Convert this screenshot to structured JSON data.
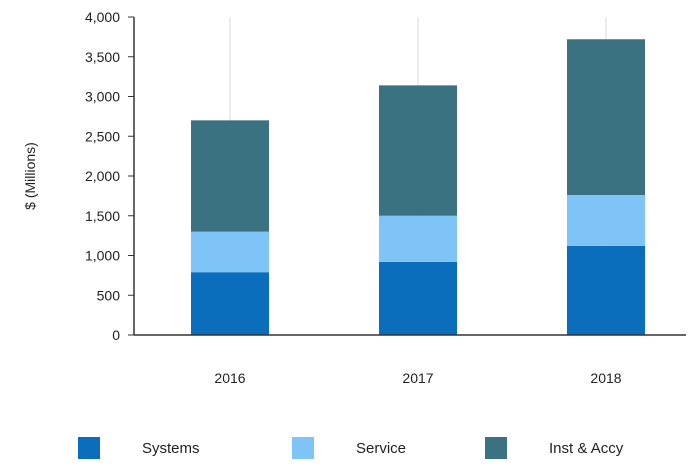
{
  "chart_data": {
    "type": "bar",
    "stacked": true,
    "categories": [
      "2016",
      "2017",
      "2018"
    ],
    "series": [
      {
        "name": "Systems",
        "values": [
          790,
          920,
          1120
        ],
        "color": "#0a6ebd"
      },
      {
        "name": "Service",
        "values": [
          510,
          580,
          640
        ],
        "color": "#7fc4f7"
      },
      {
        "name": "Inst & Accy",
        "values": [
          1400,
          1640,
          1960
        ],
        "color": "#3a7282"
      }
    ],
    "title": "",
    "xlabel": "",
    "ylabel": "$ (Millions)",
    "ylim": [
      0,
      4000
    ],
    "yticks": [
      0,
      500,
      1000,
      1500,
      2000,
      2500,
      3000,
      3500,
      4000
    ],
    "ytick_labels": [
      "0",
      "500",
      "1,000",
      "1,500",
      "2,000",
      "2,500",
      "3,000",
      "3,500",
      "4,000"
    ],
    "grid": "vertical lines at categories",
    "legend_position": "bottom"
  }
}
